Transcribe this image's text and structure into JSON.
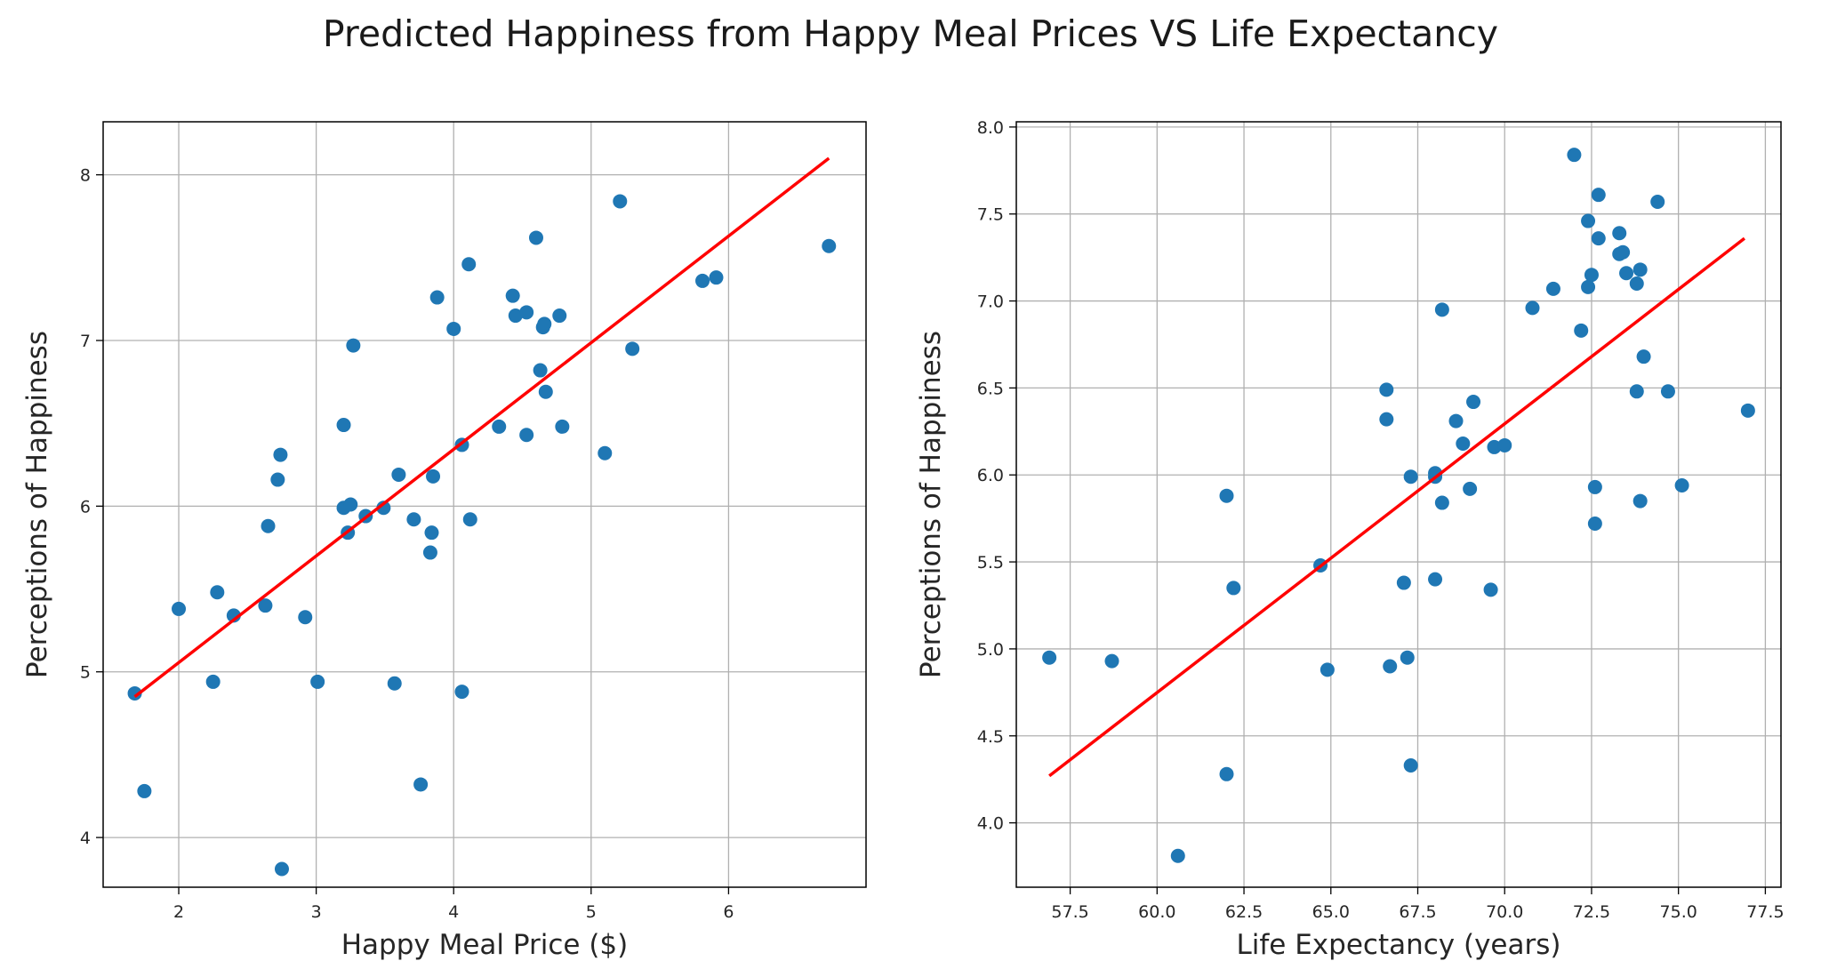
{
  "figure_title": "Predicted Happiness from Happy Meal Prices VS Life Expectancy",
  "colors": {
    "points": "#1f77b4",
    "fit_line": "#ff0000",
    "grid": "#b0b0b0",
    "axes": "#000000"
  },
  "chart_data": [
    {
      "type": "scatter",
      "title": "",
      "xlabel": "Happy Meal Price ($)",
      "ylabel": "Perceptions of Happiness",
      "xlim": [
        1.45,
        7.0
      ],
      "ylim": [
        3.7,
        8.32
      ],
      "xticks": [
        2,
        3,
        4,
        5,
        6
      ],
      "yticks": [
        4,
        5,
        6,
        7,
        8
      ],
      "xtick_labels": [
        "2",
        "3",
        "4",
        "5",
        "6"
      ],
      "ytick_labels": [
        "4",
        "5",
        "6",
        "7",
        "8"
      ],
      "grid": true,
      "x": [
        1.68,
        1.75,
        2.0,
        2.25,
        2.28,
        2.4,
        2.63,
        2.65,
        2.72,
        2.74,
        2.75,
        2.92,
        3.01,
        3.2,
        3.2,
        3.23,
        3.25,
        3.27,
        3.36,
        3.49,
        3.57,
        3.6,
        3.71,
        3.76,
        3.83,
        3.84,
        3.85,
        3.88,
        4.0,
        4.06,
        4.06,
        4.11,
        4.12,
        4.33,
        4.43,
        4.45,
        4.53,
        4.53,
        4.6,
        4.63,
        4.65,
        4.66,
        4.67,
        4.77,
        4.79,
        5.1,
        5.21,
        5.3,
        5.81,
        5.91,
        6.73
      ],
      "y": [
        4.87,
        4.28,
        5.38,
        4.94,
        5.48,
        5.34,
        5.4,
        5.88,
        6.16,
        6.31,
        3.81,
        5.33,
        4.94,
        6.49,
        5.99,
        5.84,
        6.01,
        6.97,
        5.94,
        5.99,
        4.93,
        6.19,
        5.92,
        4.32,
        5.72,
        5.84,
        6.18,
        7.26,
        7.07,
        6.37,
        4.88,
        7.46,
        5.92,
        6.48,
        7.27,
        7.15,
        7.17,
        6.43,
        7.62,
        6.82,
        7.08,
        7.1,
        6.69,
        7.15,
        6.48,
        6.32,
        7.84,
        6.95,
        7.36,
        7.38,
        7.57
      ],
      "fit_line": {
        "x": [
          1.68,
          6.73
        ],
        "y": [
          4.85,
          8.1
        ]
      }
    },
    {
      "type": "scatter",
      "title": "",
      "xlabel": "Life Expectancy (years)",
      "ylabel": "Perceptions of Happiness",
      "xlim": [
        55.95,
        77.95
      ],
      "ylim": [
        3.63,
        8.03
      ],
      "xticks": [
        57.5,
        60.0,
        62.5,
        65.0,
        67.5,
        70.0,
        72.5,
        75.0,
        77.5
      ],
      "yticks": [
        4.0,
        4.5,
        5.0,
        5.5,
        6.0,
        6.5,
        7.0,
        7.5,
        8.0
      ],
      "xtick_labels": [
        "57.5",
        "60.0",
        "62.5",
        "65.0",
        "67.5",
        "70.0",
        "72.5",
        "75.0",
        "77.5"
      ],
      "ytick_labels": [
        "4.0",
        "4.5",
        "5.0",
        "5.5",
        "6.0",
        "6.5",
        "7.0",
        "7.5",
        "8.0"
      ],
      "grid": true,
      "x": [
        56.9,
        58.7,
        60.6,
        62.0,
        62.0,
        62.2,
        64.7,
        64.9,
        66.6,
        66.6,
        66.7,
        67.1,
        67.2,
        67.3,
        67.3,
        68.0,
        68.0,
        68.0,
        68.2,
        68.2,
        68.6,
        68.8,
        69.0,
        69.1,
        69.6,
        69.7,
        70.0,
        70.8,
        71.4,
        72.0,
        72.2,
        72.4,
        72.4,
        72.5,
        72.6,
        72.6,
        72.7,
        72.7,
        73.3,
        73.3,
        73.4,
        73.5,
        73.8,
        73.8,
        73.9,
        73.9,
        74.0,
        74.4,
        74.7,
        75.1,
        77.0
      ],
      "y": [
        4.95,
        4.93,
        3.81,
        5.88,
        4.28,
        5.35,
        5.48,
        4.88,
        6.49,
        6.32,
        4.9,
        5.38,
        4.95,
        5.99,
        4.33,
        6.01,
        5.99,
        5.4,
        6.95,
        5.84,
        6.31,
        6.18,
        5.92,
        6.42,
        5.34,
        6.16,
        6.17,
        6.96,
        7.07,
        7.84,
        6.83,
        7.46,
        7.08,
        7.15,
        5.93,
        5.72,
        7.36,
        7.61,
        7.39,
        7.27,
        7.28,
        7.16,
        7.1,
        6.48,
        7.18,
        5.85,
        6.68,
        7.57,
        6.48,
        5.94,
        6.37
      ],
      "fit_line": {
        "x": [
          56.9,
          76.9
        ],
        "y": [
          4.27,
          7.36
        ]
      }
    }
  ]
}
